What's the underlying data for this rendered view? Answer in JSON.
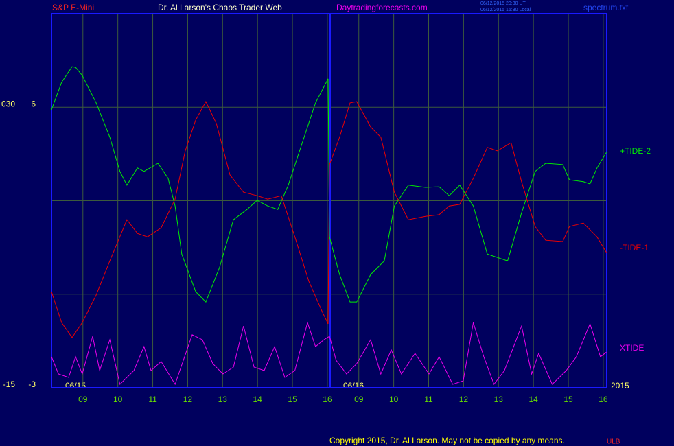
{
  "chart_data": {
    "type": "line",
    "header": [
      "S&P E-Mini",
      "Dr. Al Larson's Chaos Trader Web",
      "Daytradingforecasts.com"
    ],
    "stamp": [
      "06/12/2015 20:30 UT",
      "06/12/2015 15:30 Local"
    ],
    "file": "spectrum.txt",
    "dates": [
      "06/15",
      "06/16"
    ],
    "year": "2015",
    "copyright": "Copyright 2015, Dr. Al Larson. May not be copied by any means.",
    "mark": "ULB",
    "xlim": [
      8.1,
      24.0
    ],
    "xticks": [
      {
        "value": 9,
        "label": "09"
      },
      10,
      11,
      12,
      13,
      14,
      15,
      16,
      {
        "value": 16.9,
        "label": "09"
      },
      {
        "value": 17.9,
        "label": "10"
      },
      {
        "value": 18.9,
        "label": "11"
      },
      {
        "value": 19.9,
        "label": "12"
      },
      {
        "value": 20.9,
        "label": "13"
      },
      {
        "value": 21.9,
        "label": "14"
      },
      {
        "value": 22.9,
        "label": "15"
      },
      {
        "value": 23.9,
        "label": "16"
      }
    ],
    "ylim": [
      -3,
      9
    ],
    "yticks": [
      -3,
      6
    ],
    "ygrid": [
      0,
      3,
      6
    ],
    "y2lim": [
      -15,
      45
    ],
    "y2ticks": [
      -15,
      {
        "value": 30,
        "label": "030"
      }
    ],
    "grid": true,
    "series": [
      {
        "name": "+TIDE-2",
        "color": "#00ee00",
        "x": [
          8.1,
          8.39,
          8.69,
          8.79,
          8.98,
          9.38,
          9.77,
          10.06,
          10.26,
          10.56,
          10.75,
          11.15,
          11.44,
          11.64,
          11.83,
          12.23,
          12.52,
          12.91,
          13.31,
          13.7,
          13.99,
          14.29,
          14.58,
          14.88,
          15.27,
          15.66,
          16.02,
          16.06,
          16.35,
          16.65,
          16.84,
          17.24,
          17.63,
          17.92,
          18.32,
          18.81,
          19.2,
          19.49,
          19.79,
          20.18,
          20.58,
          21.16,
          21.56,
          21.95,
          22.25,
          22.74,
          22.93,
          23.33,
          23.52,
          23.72,
          23.99
        ],
        "values": [
          5.92,
          6.8,
          7.3,
          7.28,
          7.02,
          6.14,
          5.04,
          3.94,
          3.5,
          4.05,
          3.94,
          4.2,
          3.72,
          2.83,
          1.29,
          0.08,
          -0.25,
          0.85,
          2.39,
          2.72,
          3.01,
          2.83,
          2.72,
          3.5,
          4.82,
          6.14,
          6.91,
          1.84,
          0.63,
          -0.25,
          -0.25,
          0.63,
          1.07,
          2.83,
          3.5,
          3.43,
          3.45,
          3.16,
          3.5,
          2.83,
          1.29,
          1.07,
          2.61,
          3.94,
          4.2,
          4.16,
          3.67,
          3.61,
          3.54,
          4.05,
          4.55
        ]
      },
      {
        "name": "-TIDE-1",
        "color": "#ee0000",
        "x": [
          8.1,
          8.39,
          8.69,
          8.98,
          9.38,
          9.77,
          10.26,
          10.56,
          10.85,
          11.24,
          11.64,
          11.93,
          12.23,
          12.52,
          12.82,
          13.21,
          13.6,
          13.99,
          14.29,
          14.68,
          15.07,
          15.47,
          15.86,
          16.02,
          16.06,
          16.35,
          16.65,
          16.84,
          17.24,
          17.53,
          17.92,
          18.32,
          18.81,
          19.2,
          19.49,
          19.79,
          20.18,
          20.58,
          20.87,
          21.26,
          21.56,
          21.95,
          22.25,
          22.74,
          22.93,
          23.33,
          23.72,
          23.99
        ],
        "values": [
          0.08,
          -0.91,
          -1.39,
          -0.91,
          -0.03,
          1.07,
          2.39,
          1.95,
          1.84,
          2.13,
          3.05,
          4.6,
          5.59,
          6.18,
          5.48,
          3.83,
          3.27,
          3.16,
          3.05,
          3.16,
          1.84,
          0.41,
          -0.58,
          -0.95,
          4.16,
          5.04,
          6.14,
          6.18,
          5.37,
          5.04,
          3.27,
          2.39,
          2.5,
          2.55,
          2.83,
          2.88,
          3.72,
          4.71,
          4.6,
          4.86,
          3.61,
          2.17,
          1.73,
          1.69,
          2.17,
          2.28,
          1.84,
          1.34
        ]
      },
      {
        "name": "XTIDE",
        "color": "#ee00ee",
        "x": [
          8.1,
          8.3,
          8.59,
          8.79,
          8.98,
          9.28,
          9.48,
          9.77,
          10.06,
          10.46,
          10.75,
          10.95,
          11.24,
          11.64,
          12.13,
          12.42,
          12.72,
          13.01,
          13.31,
          13.6,
          13.9,
          14.19,
          14.49,
          14.78,
          15.07,
          15.43,
          15.66,
          15.9,
          16.06,
          16.25,
          16.55,
          16.84,
          17.24,
          17.53,
          17.83,
          18.12,
          18.51,
          18.91,
          19.2,
          19.59,
          19.89,
          20.18,
          20.48,
          20.77,
          21.07,
          21.56,
          21.85,
          22.05,
          22.44,
          22.84,
          23.13,
          23.52,
          23.82,
          23.99
        ],
        "values": [
          -2.01,
          -2.56,
          -2.67,
          -2.01,
          -2.56,
          -1.35,
          -2.45,
          -1.46,
          -2.89,
          -2.45,
          -1.68,
          -2.45,
          -2.16,
          -2.89,
          -1.3,
          -1.46,
          -2.23,
          -2.56,
          -2.34,
          -1.02,
          -2.34,
          -2.45,
          -1.68,
          -2.67,
          -2.45,
          -0.91,
          -1.68,
          -1.46,
          -1.35,
          -2.12,
          -2.56,
          -2.23,
          -1.46,
          -2.56,
          -1.79,
          -2.56,
          -1.9,
          -2.56,
          -2.01,
          -2.89,
          -2.78,
          -0.91,
          -2.01,
          -2.89,
          -2.45,
          -1.02,
          -2.56,
          -1.9,
          -2.89,
          -2.45,
          -2.01,
          -0.95,
          -2.01,
          -1.86
        ]
      }
    ]
  }
}
